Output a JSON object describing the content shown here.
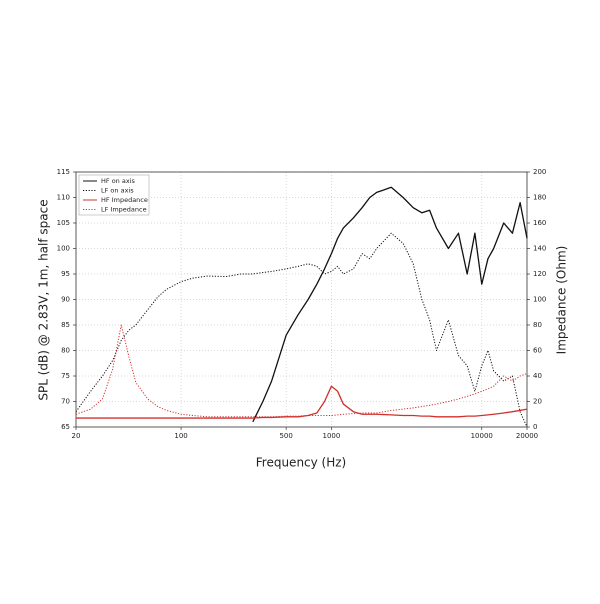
{
  "chart_data": {
    "type": "line",
    "xlabel": "Frequency (Hz)",
    "ylabel": "SPL (dB) @ 2.83V, 1m, half space",
    "y2label": "Impedance (Ohm)",
    "xscale": "log",
    "grid": true,
    "legend": "upper left",
    "xlim": [
      20,
      20000
    ],
    "xticks": [
      20,
      100,
      500,
      1000,
      10000,
      20000
    ],
    "ylim": [
      65,
      115
    ],
    "yticks": [
      65,
      70,
      75,
      80,
      85,
      90,
      95,
      100,
      105,
      110,
      115
    ],
    "y2lim": [
      0,
      200
    ],
    "y2ticks": [
      0,
      20,
      40,
      60,
      80,
      100,
      120,
      140,
      160,
      180,
      200
    ],
    "x": [
      20,
      25,
      30,
      35,
      40,
      45,
      50,
      60,
      70,
      80,
      100,
      120,
      150,
      200,
      250,
      300,
      350,
      400,
      500,
      600,
      700,
      800,
      900,
      1000,
      1100,
      1200,
      1400,
      1600,
      1800,
      2000,
      2500,
      3000,
      3500,
      4000,
      4500,
      5000,
      6000,
      7000,
      8000,
      9000,
      10000,
      11000,
      12000,
      14000,
      16000,
      18000,
      20000
    ],
    "series": [
      {
        "name": "HF on axis",
        "color": "#111111",
        "style": "solid",
        "values": [
          null,
          null,
          null,
          null,
          null,
          null,
          null,
          null,
          null,
          null,
          null,
          null,
          null,
          null,
          null,
          66,
          70,
          74,
          83,
          87,
          90,
          93,
          96,
          99,
          102,
          104,
          106,
          108,
          110,
          111,
          112,
          110,
          108,
          107,
          107.5,
          104,
          100,
          103,
          95,
          103,
          93,
          98,
          100,
          105,
          103,
          109,
          102
        ]
      },
      {
        "name": "LF on axis",
        "color": "#111111",
        "style": "dotted",
        "values": [
          68,
          72,
          75,
          78,
          82,
          84,
          85,
          88,
          90.5,
          92,
          93.5,
          94.2,
          94.6,
          94.5,
          95,
          95,
          95.3,
          95.5,
          96,
          96.5,
          97,
          96.5,
          95,
          95.5,
          96.5,
          95,
          96,
          99,
          98,
          100,
          103,
          101,
          97,
          90,
          86,
          80,
          86,
          79,
          77,
          72,
          77,
          80,
          76,
          74,
          75,
          68,
          65
        ]
      },
      {
        "name": "HF Impedance",
        "color": "#d0312d",
        "style": "solid",
        "axis": "y2",
        "values": [
          7,
          7,
          7,
          7,
          7,
          7,
          7,
          7,
          7,
          7,
          7,
          7,
          7,
          7,
          7,
          7,
          7.5,
          7.5,
          8,
          8,
          9,
          11,
          20,
          32,
          28,
          18,
          12,
          10,
          10,
          10,
          9.5,
          9,
          9,
          8.5,
          8.5,
          8,
          8,
          8,
          8.5,
          8.5,
          9,
          9.5,
          10,
          11,
          12,
          13,
          14
        ]
      },
      {
        "name": "LF Impedance",
        "color": "#d0312d",
        "style": "dotted",
        "axis": "y2",
        "values": [
          10,
          14,
          22,
          45,
          80,
          55,
          35,
          22,
          16,
          13,
          10,
          9,
          8,
          8,
          8,
          8,
          8,
          8,
          8.5,
          8.5,
          9,
          9,
          9,
          9,
          9.5,
          10,
          10.5,
          11,
          11,
          11,
          13,
          14,
          15,
          16,
          17,
          18,
          20,
          22,
          24,
          26,
          28,
          30,
          32,
          40,
          36,
          40,
          42
        ]
      }
    ]
  }
}
